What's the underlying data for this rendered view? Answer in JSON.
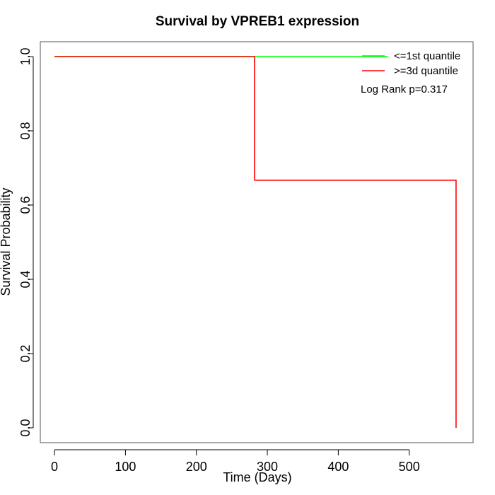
{
  "chart_data": {
    "type": "line",
    "title": "Survival by VPREB1 expression",
    "xlabel": "Time (Days)",
    "ylabel": "Survival Probability",
    "xlim": [
      -20,
      590
    ],
    "ylim": [
      -0.04,
      1.04
    ],
    "x_ticks": [
      0,
      100,
      200,
      300,
      400,
      500
    ],
    "x_tick_labels": [
      "0",
      "100",
      "200",
      "300",
      "400",
      "500"
    ],
    "y_ticks": [
      0.0,
      0.2,
      0.4,
      0.6,
      0.8,
      1.0
    ],
    "y_tick_labels": [
      "0.0",
      "0.2",
      "0.4",
      "0.6",
      "0.8",
      "1.0"
    ],
    "grid": false,
    "legend_position": "top-right",
    "series": [
      {
        "name": "<=1st quantile",
        "color": "#00ff00",
        "step_points": [
          [
            0,
            1.0
          ],
          [
            470,
            1.0
          ]
        ]
      },
      {
        "name": ">=3d quantile",
        "color": "#ff0000",
        "step_points": [
          [
            0,
            1.0
          ],
          [
            282,
            1.0
          ],
          [
            282,
            0.667
          ],
          [
            566,
            0.667
          ],
          [
            566,
            0.0
          ]
        ]
      }
    ],
    "annotation": "Log Rank p=0.317"
  }
}
